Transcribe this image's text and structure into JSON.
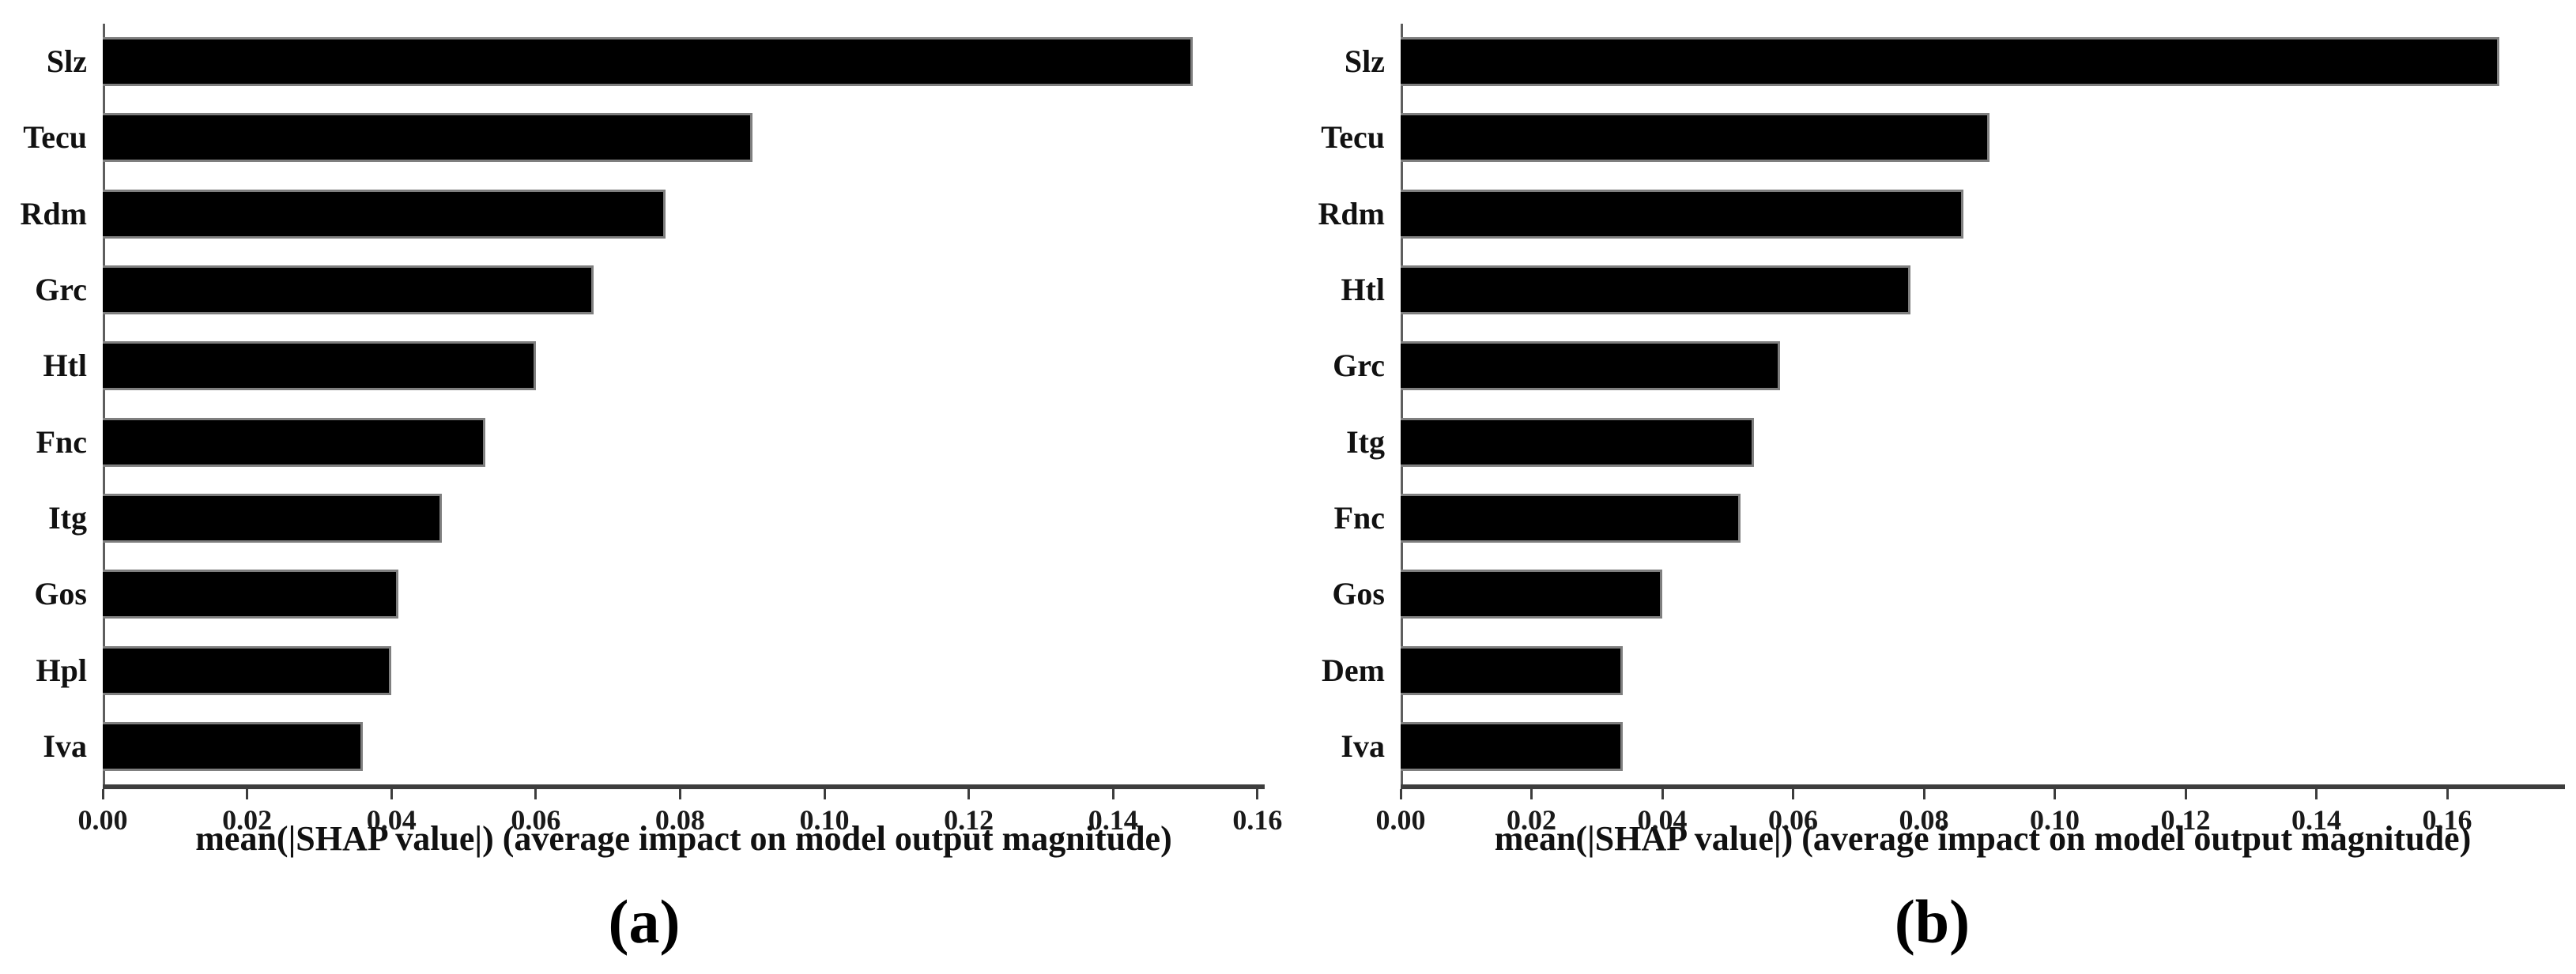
{
  "figure": {
    "background_color": "#ffffff",
    "bar_color": "#000000",
    "bar_border_color": "#7f7f7f",
    "axis_color": "#3d3d3d",
    "text_color": "#111111"
  },
  "chart_data": [
    {
      "type": "bar",
      "orientation": "horizontal",
      "caption": "(a)",
      "title": "",
      "xlabel": "mean(|SHAP value|) (average impact on model output magnitude)",
      "ylabel": "",
      "grid": false,
      "legend": null,
      "categories": [
        "Slz",
        "Tecu",
        "Rdm",
        "Grc",
        "Htl",
        "Fnc",
        "Itg",
        "Gos",
        "Hpl",
        "Iva"
      ],
      "values": [
        0.151,
        0.09,
        0.078,
        0.068,
        0.06,
        0.053,
        0.047,
        0.041,
        0.04,
        0.036
      ],
      "xlim": [
        0,
        0.161
      ],
      "xticks": [
        {
          "value": 0.0,
          "label": "0.00"
        },
        {
          "value": 0.02,
          "label": "0.02"
        },
        {
          "value": 0.04,
          "label": "0.04"
        },
        {
          "value": 0.06,
          "label": "0.06"
        },
        {
          "value": 0.08,
          "label": "0.08"
        },
        {
          "value": 0.1,
          "label": "0.10"
        },
        {
          "value": 0.12,
          "label": "0.12"
        },
        {
          "value": 0.14,
          "label": "0.14"
        },
        {
          "value": 0.16,
          "label": "0.16"
        }
      ]
    },
    {
      "type": "bar",
      "orientation": "horizontal",
      "caption": "(b)",
      "title": "",
      "xlabel": "mean(|SHAP value|) (average impact on model output magnitude)",
      "ylabel": "",
      "grid": false,
      "legend": null,
      "categories": [
        "Slz",
        "Tecu",
        "Rdm",
        "Htl",
        "Grc",
        "Itg",
        "Fnc",
        "Gos",
        "Dem",
        "Iva"
      ],
      "values": [
        0.168,
        0.09,
        0.086,
        0.078,
        0.058,
        0.054,
        0.052,
        0.04,
        0.034,
        0.034
      ],
      "xlim": [
        0,
        0.178
      ],
      "xticks": [
        {
          "value": 0.0,
          "label": "0.00"
        },
        {
          "value": 0.02,
          "label": "0.02"
        },
        {
          "value": 0.04,
          "label": "0.04"
        },
        {
          "value": 0.06,
          "label": "0.06"
        },
        {
          "value": 0.08,
          "label": "0.08"
        },
        {
          "value": 0.1,
          "label": "0.10"
        },
        {
          "value": 0.12,
          "label": "0.12"
        },
        {
          "value": 0.14,
          "label": "0.14"
        },
        {
          "value": 0.16,
          "label": "0.16"
        }
      ]
    }
  ]
}
